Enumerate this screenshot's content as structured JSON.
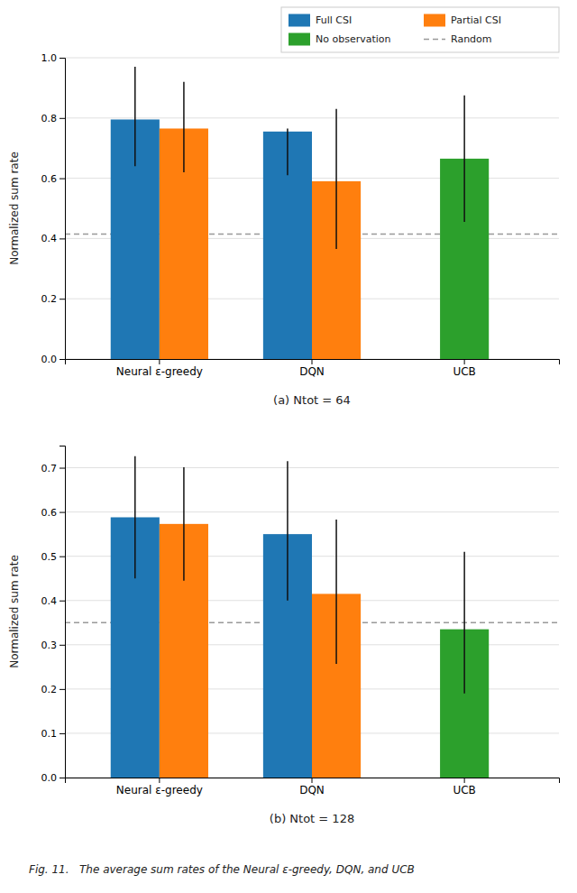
{
  "chart_data": [
    {
      "type": "bar",
      "categories": [
        "Neural ε-greedy",
        "DQN",
        "UCB"
      ],
      "series": [
        {
          "name": "Full CSI",
          "values": [
            0.795,
            0.755,
            null
          ],
          "error_low": [
            0.155,
            0.145,
            null
          ],
          "error_high": [
            0.175,
            0.01,
            null
          ]
        },
        {
          "name": "Partial CSI",
          "values": [
            0.765,
            0.59,
            null
          ],
          "error_low": [
            0.145,
            0.225,
            null
          ],
          "error_high": [
            0.155,
            0.24,
            null
          ]
        },
        {
          "name": "No observation",
          "values": [
            null,
            null,
            0.665
          ],
          "error_low": [
            null,
            null,
            0.21
          ],
          "error_high": [
            null,
            null,
            0.21
          ]
        },
        {
          "name": "Random",
          "type": "hline",
          "line_style": "dashed",
          "color": "#999999",
          "value": 0.415
        }
      ],
      "xlabel": "(a) Ntot = 64",
      "ylabel": "Normalized sum rate",
      "ylim": [
        0.0,
        1.0
      ],
      "yticks": [
        {
          "value": 0.0,
          "label": "0.0"
        },
        0.2,
        0.4,
        0.6,
        0.8,
        {
          "value": 1.0,
          "label": "1.0"
        }
      ],
      "grid": true,
      "legend": "upper right"
    },
    {
      "type": "bar",
      "categories": [
        "Neural ε-greedy",
        "DQN",
        "UCB"
      ],
      "series": [
        {
          "values": [
            0.588,
            0.55,
            null
          ],
          "error_low": [
            0.138,
            0.15,
            null
          ],
          "error_high": [
            0.138,
            0.165,
            null
          ]
        },
        {
          "values": [
            0.573,
            0.415,
            null
          ],
          "error_low": [
            0.128,
            0.158,
            null
          ],
          "error_high": [
            0.128,
            0.168,
            null
          ]
        },
        {
          "values": [
            null,
            null,
            0.335
          ],
          "error_low": [
            null,
            null,
            0.145
          ],
          "error_high": [
            null,
            null,
            0.175
          ]
        },
        {
          "type": "hline",
          "line_style": "dashed",
          "color": "#999999",
          "value": 0.35
        }
      ],
      "xlabel": "(b) Ntot = 128",
      "ylabel": "Normalized sum rate",
      "ylim": [
        0.0,
        0.75
      ],
      "yticks": [
        {
          "value": 0.0,
          "label": "0.0"
        },
        0.1,
        0.2,
        0.3,
        0.4,
        0.5,
        0.6,
        0.7
      ],
      "grid": true,
      "annotations": [
        "Fig. 11.   The average sum rates of the Neural ε-greedy, DQN, and UCB"
      ]
    }
  ]
}
